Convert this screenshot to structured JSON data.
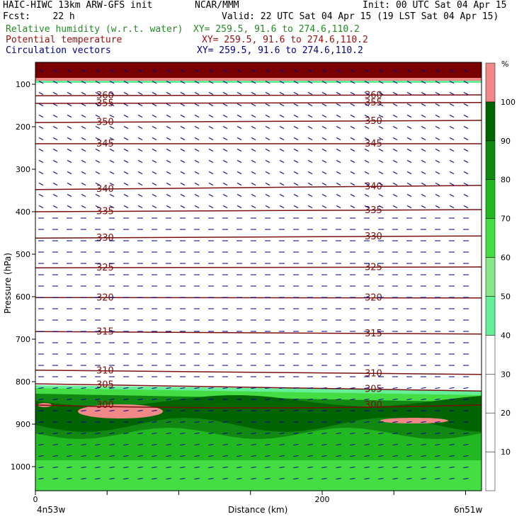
{
  "header": {
    "line1_left": "HAIC-HIWC 13km ARW-GFS init",
    "line1_mid": "NCAR/MMM",
    "line1_right": "Init: 00 UTC Sat 04 Apr 15",
    "line2_left": "Fcst:    22 h",
    "line2_right": "Valid: 22 UTC Sat 04 Apr 15 (19 LST Sat 04 Apr 15)",
    "rh_title": "Relative humidity (w.r.t. water)",
    "rh_xy": "XY= 259.5, 91.6 to 274.6,110.2",
    "theta_title": "Potential temperature",
    "theta_xy": "XY= 259.5, 91.6 to 274.6,110.2",
    "vec_title": "Circulation vectors",
    "vec_xy": "XY= 259.5, 91.6 to 274.6,110.2"
  },
  "colors": {
    "rh_title": "#228b22",
    "theta_title": "#a01010",
    "vec_title": "#00008b",
    "theta_line": "#7a1010",
    "vector": "#00008b",
    "top_band": "#7a0000"
  },
  "footer": {
    "left": "4n53w",
    "center": "Distance (km)",
    "right": "6n51w"
  },
  "chart_data": {
    "type": "cross-section",
    "ylabel": "Pressure (hPa)",
    "xlabel": "Distance (km)",
    "x_ticks": [
      "0",
      "200"
    ],
    "y_ticks": [
      "100",
      "200",
      "300",
      "400",
      "500",
      "600",
      "700",
      "800",
      "900",
      "1000"
    ],
    "colorbar": {
      "unit": "%",
      "levels": [
        "10",
        "20",
        "30",
        "40",
        "50",
        "60",
        "70",
        "80",
        "90",
        "100"
      ],
      "colors": [
        "#ffffff",
        "#ffffff",
        "#ffffff",
        "#ffffff",
        "#66ee99",
        "#88e888",
        "#44dd44",
        "#22b822",
        "#118811",
        "#006400",
        "#f08888"
      ]
    },
    "theta_contours": [
      {
        "value": "300",
        "left_p": 855,
        "right_p": 855
      },
      {
        "value": "305",
        "left_p": 805,
        "right_p": 822
      },
      {
        "value": "310",
        "left_p": 773,
        "right_p": 783
      },
      {
        "value": "315",
        "left_p": 682,
        "right_p": 688
      },
      {
        "value": "320",
        "left_p": 602,
        "right_p": 603
      },
      {
        "value": "325",
        "left_p": 532,
        "right_p": 530
      },
      {
        "value": "330",
        "left_p": 462,
        "right_p": 457
      },
      {
        "value": "335",
        "left_p": 400,
        "right_p": 395
      },
      {
        "value": "340",
        "left_p": 348,
        "right_p": 338
      },
      {
        "value": "345",
        "left_p": 240,
        "right_p": 240
      },
      {
        "value": "350",
        "left_p": 190,
        "right_p": 185
      },
      {
        "value": "355",
        "left_p": 145,
        "right_p": 143
      },
      {
        "value": "360",
        "left_p": 127,
        "right_p": 125
      }
    ]
  }
}
